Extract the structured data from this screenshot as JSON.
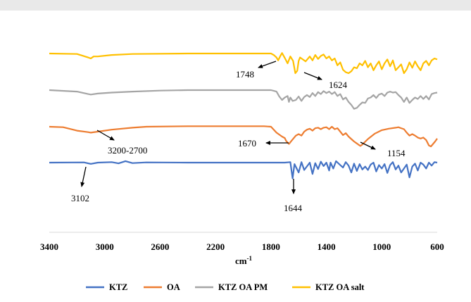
{
  "chart_data": {
    "type": "line",
    "xlabel": "cm",
    "xlabel_sup": "-1",
    "xlim": [
      3400,
      600
    ],
    "x_ticks": [
      3400,
      3000,
      2600,
      2200,
      1800,
      1400,
      1000,
      600
    ],
    "reversed_x": true,
    "grid": false,
    "legend_position": "bottom",
    "series": [
      {
        "name": "KTZ",
        "color": "#4472C4",
        "points": [
          [
            3400,
            0
          ],
          [
            3150,
            0.05
          ],
          [
            3100,
            -0.25
          ],
          [
            3050,
            0
          ],
          [
            2950,
            0.1
          ],
          [
            2900,
            -0.15
          ],
          [
            2850,
            0.3
          ],
          [
            2800,
            -0.1
          ],
          [
            2700,
            0.05
          ],
          [
            2400,
            0
          ],
          [
            2000,
            0
          ],
          [
            1700,
            0
          ],
          [
            1660,
            0.1
          ],
          [
            1644,
            -3.2
          ],
          [
            1630,
            -0.3
          ],
          [
            1600,
            -2.0
          ],
          [
            1580,
            0.1
          ],
          [
            1560,
            -1.5
          ],
          [
            1520,
            0
          ],
          [
            1500,
            -2.3
          ],
          [
            1480,
            -0.1
          ],
          [
            1460,
            -1.3
          ],
          [
            1440,
            0.2
          ],
          [
            1420,
            -0.7
          ],
          [
            1400,
            0
          ],
          [
            1380,
            -1.6
          ],
          [
            1370,
            0
          ],
          [
            1350,
            -1.2
          ],
          [
            1330,
            0.3
          ],
          [
            1300,
            -0.5
          ],
          [
            1280,
            -1.0
          ],
          [
            1260,
            0.1
          ],
          [
            1240,
            -0.6
          ],
          [
            1220,
            -2.0
          ],
          [
            1200,
            -0.2
          ],
          [
            1180,
            -1.7
          ],
          [
            1160,
            -0.3
          ],
          [
            1140,
            -1.4
          ],
          [
            1120,
            -0.8
          ],
          [
            1100,
            -1.5
          ],
          [
            1080,
            -0.4
          ],
          [
            1060,
            0
          ],
          [
            1040,
            -1.8
          ],
          [
            1020,
            -0.5
          ],
          [
            1000,
            -1.2
          ],
          [
            980,
            -0.3
          ],
          [
            960,
            -2.1
          ],
          [
            940,
            -0.5
          ],
          [
            920,
            0.1
          ],
          [
            900,
            -1.4
          ],
          [
            880,
            -0.6
          ],
          [
            860,
            -2.0
          ],
          [
            840,
            -1.2
          ],
          [
            820,
            -0.4
          ],
          [
            800,
            -3.0
          ],
          [
            780,
            -0.8
          ],
          [
            760,
            -0.2
          ],
          [
            740,
            -1.6
          ],
          [
            720,
            0
          ],
          [
            700,
            -0.4
          ],
          [
            680,
            -1.2
          ],
          [
            660,
            0
          ],
          [
            640,
            -0.6
          ],
          [
            620,
            0.1
          ],
          [
            600,
            0
          ]
        ]
      },
      {
        "name": "OA",
        "color": "#ED7D31",
        "points": [
          [
            3400,
            0
          ],
          [
            3300,
            -0.1
          ],
          [
            3200,
            -0.8
          ],
          [
            3120,
            -1.1
          ],
          [
            3100,
            -1.2
          ],
          [
            3050,
            -1.0
          ],
          [
            2950,
            -0.6
          ],
          [
            2800,
            -0.2
          ],
          [
            2700,
            0
          ],
          [
            2400,
            0.1
          ],
          [
            2000,
            0.1
          ],
          [
            1850,
            0.1
          ],
          [
            1800,
            0
          ],
          [
            1760,
            -1.2
          ],
          [
            1720,
            -2.0
          ],
          [
            1700,
            -2.3
          ],
          [
            1690,
            -2.9
          ],
          [
            1670,
            -3.5
          ],
          [
            1650,
            -2.8
          ],
          [
            1620,
            -1.8
          ],
          [
            1600,
            -1.5
          ],
          [
            1580,
            -1.8
          ],
          [
            1560,
            -1.0
          ],
          [
            1540,
            -0.6
          ],
          [
            1520,
            -0.4
          ],
          [
            1500,
            -0.8
          ],
          [
            1480,
            -0.3
          ],
          [
            1460,
            -0.2
          ],
          [
            1440,
            -0.5
          ],
          [
            1420,
            -0.2
          ],
          [
            1400,
            -0.1
          ],
          [
            1380,
            -0.5
          ],
          [
            1360,
            0
          ],
          [
            1340,
            -0.5
          ],
          [
            1320,
            -0.3
          ],
          [
            1300,
            -1.0
          ],
          [
            1280,
            -1.7
          ],
          [
            1260,
            -1.3
          ],
          [
            1240,
            -2.0
          ],
          [
            1220,
            -2.5
          ],
          [
            1200,
            -3.0
          ],
          [
            1180,
            -3.4
          ],
          [
            1160,
            -3.8
          ],
          [
            1154,
            -3.9
          ],
          [
            1140,
            -3.6
          ],
          [
            1100,
            -2.5
          ],
          [
            1050,
            -1.4
          ],
          [
            1000,
            -0.7
          ],
          [
            950,
            -0.4
          ],
          [
            900,
            -0.2
          ],
          [
            880,
            -0.1
          ],
          [
            860,
            -0.3
          ],
          [
            840,
            -0.5
          ],
          [
            820,
            -1.2
          ],
          [
            800,
            -1.8
          ],
          [
            780,
            -1.5
          ],
          [
            760,
            -1.8
          ],
          [
            740,
            -2.2
          ],
          [
            720,
            -2.4
          ],
          [
            700,
            -2.2
          ],
          [
            680,
            -2.7
          ],
          [
            660,
            -3.8
          ],
          [
            645,
            -4.0
          ],
          [
            630,
            -3.5
          ],
          [
            615,
            -3.0
          ],
          [
            600,
            -2.4
          ]
        ]
      },
      {
        "name": "KTZ OA PM",
        "color": "#A5A5A5",
        "points": [
          [
            3400,
            0
          ],
          [
            3200,
            -0.3
          ],
          [
            3120,
            -0.8
          ],
          [
            3100,
            -0.9
          ],
          [
            3050,
            -0.7
          ],
          [
            2950,
            -0.5
          ],
          [
            2800,
            -0.3
          ],
          [
            2600,
            -0.1
          ],
          [
            2400,
            0
          ],
          [
            2000,
            0
          ],
          [
            1800,
            0
          ],
          [
            1760,
            -0.3
          ],
          [
            1740,
            -1.3
          ],
          [
            1720,
            -2.0
          ],
          [
            1700,
            -1.5
          ],
          [
            1680,
            -1.2
          ],
          [
            1670,
            -2.4
          ],
          [
            1660,
            -1.5
          ],
          [
            1644,
            -2.2
          ],
          [
            1620,
            -2.0
          ],
          [
            1600,
            -1.3
          ],
          [
            1580,
            -2.2
          ],
          [
            1560,
            -1.4
          ],
          [
            1540,
            -1.0
          ],
          [
            1520,
            -1.4
          ],
          [
            1500,
            -0.6
          ],
          [
            1480,
            -1.2
          ],
          [
            1460,
            -0.4
          ],
          [
            1440,
            -0.8
          ],
          [
            1420,
            -0.2
          ],
          [
            1400,
            -0.6
          ],
          [
            1380,
            -0.3
          ],
          [
            1360,
            -0.8
          ],
          [
            1340,
            -0.4
          ],
          [
            1320,
            -1.2
          ],
          [
            1300,
            -0.8
          ],
          [
            1280,
            -1.9
          ],
          [
            1260,
            -1.5
          ],
          [
            1240,
            -2.4
          ],
          [
            1220,
            -3.0
          ],
          [
            1200,
            -3.8
          ],
          [
            1180,
            -3.6
          ],
          [
            1160,
            -3.0
          ],
          [
            1140,
            -2.5
          ],
          [
            1120,
            -2.6
          ],
          [
            1100,
            -1.7
          ],
          [
            1080,
            -1.5
          ],
          [
            1060,
            -1.0
          ],
          [
            1040,
            -1.6
          ],
          [
            1020,
            -0.9
          ],
          [
            1000,
            -0.7
          ],
          [
            980,
            -1.2
          ],
          [
            960,
            -0.5
          ],
          [
            940,
            -0.3
          ],
          [
            920,
            -0.5
          ],
          [
            900,
            -0.4
          ],
          [
            880,
            -1.0
          ],
          [
            860,
            -1.5
          ],
          [
            840,
            -2.4
          ],
          [
            820,
            -1.5
          ],
          [
            800,
            -2.6
          ],
          [
            780,
            -2.0
          ],
          [
            760,
            -1.5
          ],
          [
            740,
            -1.8
          ],
          [
            720,
            -1.2
          ],
          [
            700,
            -1.8
          ],
          [
            680,
            -1.2
          ],
          [
            660,
            -1.9
          ],
          [
            640,
            -0.8
          ],
          [
            620,
            -0.6
          ],
          [
            600,
            -0.5
          ]
        ]
      },
      {
        "name": "KTZ OA salt",
        "color": "#FFC000",
        "points": [
          [
            3400,
            0
          ],
          [
            3200,
            -0.1
          ],
          [
            3120,
            -0.8
          ],
          [
            3100,
            -1.0
          ],
          [
            3080,
            -0.6
          ],
          [
            3050,
            -0.6
          ],
          [
            2950,
            -0.3
          ],
          [
            2800,
            -0.1
          ],
          [
            2400,
            0
          ],
          [
            2000,
            0
          ],
          [
            1800,
            0
          ],
          [
            1780,
            -0.3
          ],
          [
            1760,
            -0.8
          ],
          [
            1748,
            -1.4
          ],
          [
            1730,
            -0.4
          ],
          [
            1720,
            0.1
          ],
          [
            1700,
            -0.9
          ],
          [
            1680,
            -2.0
          ],
          [
            1660,
            -0.6
          ],
          [
            1640,
            -1.5
          ],
          [
            1624,
            -4.0
          ],
          [
            1610,
            -3.5
          ],
          [
            1600,
            -1.5
          ],
          [
            1590,
            -0.8
          ],
          [
            1570,
            -1.2
          ],
          [
            1550,
            -1.6
          ],
          [
            1520,
            -0.6
          ],
          [
            1500,
            -1.4
          ],
          [
            1480,
            -0.3
          ],
          [
            1460,
            -1.1
          ],
          [
            1440,
            -0.5
          ],
          [
            1420,
            -0.2
          ],
          [
            1400,
            -1.0
          ],
          [
            1380,
            -0.6
          ],
          [
            1360,
            -1.4
          ],
          [
            1340,
            -1.0
          ],
          [
            1320,
            -2.4
          ],
          [
            1300,
            -1.8
          ],
          [
            1280,
            -3.3
          ],
          [
            1260,
            -3.8
          ],
          [
            1240,
            -4.0
          ],
          [
            1220,
            -3.6
          ],
          [
            1200,
            -2.8
          ],
          [
            1180,
            -3.0
          ],
          [
            1160,
            -2.0
          ],
          [
            1140,
            -2.4
          ],
          [
            1120,
            -1.5
          ],
          [
            1100,
            -2.8
          ],
          [
            1080,
            -2.0
          ],
          [
            1060,
            -3.4
          ],
          [
            1040,
            -2.4
          ],
          [
            1020,
            -1.6
          ],
          [
            1000,
            -3.2
          ],
          [
            980,
            -2.0
          ],
          [
            960,
            -1.2
          ],
          [
            940,
            -2.6
          ],
          [
            920,
            -1.4
          ],
          [
            900,
            -3.4
          ],
          [
            880,
            -2.8
          ],
          [
            860,
            -2.2
          ],
          [
            840,
            -4.0
          ],
          [
            820,
            -3.2
          ],
          [
            800,
            -1.8
          ],
          [
            780,
            -2.9
          ],
          [
            760,
            -1.6
          ],
          [
            740,
            -2.6
          ],
          [
            720,
            -3.4
          ],
          [
            700,
            -2.0
          ],
          [
            680,
            -1.5
          ],
          [
            660,
            -2.4
          ],
          [
            640,
            -1.4
          ],
          [
            620,
            -1.0
          ],
          [
            600,
            -1.2
          ]
        ]
      }
    ],
    "annotations": [
      "1748",
      "1624",
      "3200-2700",
      "1670",
      "1154",
      "3102",
      "1644"
    ]
  }
}
